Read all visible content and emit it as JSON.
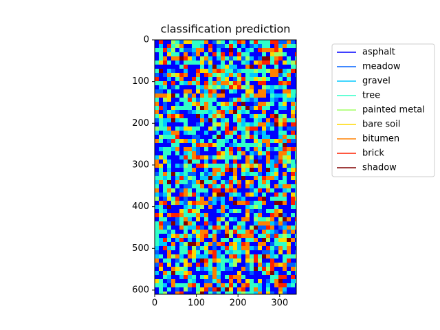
{
  "chart_data": {
    "type": "image",
    "title": "classification prediction",
    "xlim": [
      0,
      340
    ],
    "ylim": [
      610,
      0
    ],
    "xticks": [
      0,
      100,
      200,
      300
    ],
    "yticks": [
      0,
      100,
      200,
      300,
      400,
      500,
      600
    ],
    "legend": "upper right",
    "series": [
      {
        "name": "asphalt",
        "color": "#0000ff"
      },
      {
        "name": "meadow",
        "color": "#0060ff"
      },
      {
        "name": "gravel",
        "color": "#00c8ff"
      },
      {
        "name": "tree",
        "color": "#30ffc8"
      },
      {
        "name": "painted metal",
        "color": "#a0ff60"
      },
      {
        "name": "bare soil",
        "color": "#ffd800"
      },
      {
        "name": "bitumen",
        "color": "#ff8000"
      },
      {
        "name": "brick",
        "color": "#ff2000"
      },
      {
        "name": "shadow",
        "color": "#800000"
      }
    ]
  }
}
